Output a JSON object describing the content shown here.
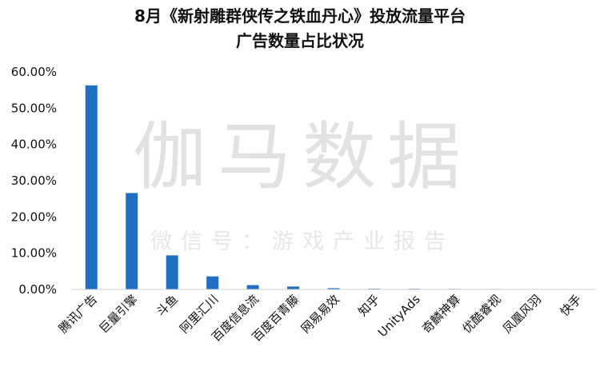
{
  "chart_data": {
    "type": "bar",
    "title": "8月《新射雕群侠传之铁血丹心》投放流量平台",
    "subtitle": "广告数量占比状况",
    "xlabel": "",
    "ylabel": "",
    "categories": [
      "腾讯广告",
      "巨量引擎",
      "斗鱼",
      "阿里汇川",
      "百度信息流",
      "百度百青藤",
      "网易易效",
      "知乎",
      "UnityAds",
      "奇麟神算",
      "优酷睿视",
      "凤凰风羽",
      "快手"
    ],
    "values": [
      56.3,
      26.6,
      9.4,
      3.6,
      1.2,
      0.8,
      0.35,
      0.2,
      0.18,
      0.15,
      0.13,
      0.12,
      0.1
    ],
    "y_ticks": [
      "0.00%",
      "10.00%",
      "20.00%",
      "30.00%",
      "40.00%",
      "50.00%",
      "60.00%"
    ],
    "ylim": [
      0,
      60
    ],
    "grid": false,
    "bar_color": "#1f6fc5"
  },
  "watermark": {
    "main": "伽马数据",
    "sub": "微信号：游戏产业报告"
  }
}
